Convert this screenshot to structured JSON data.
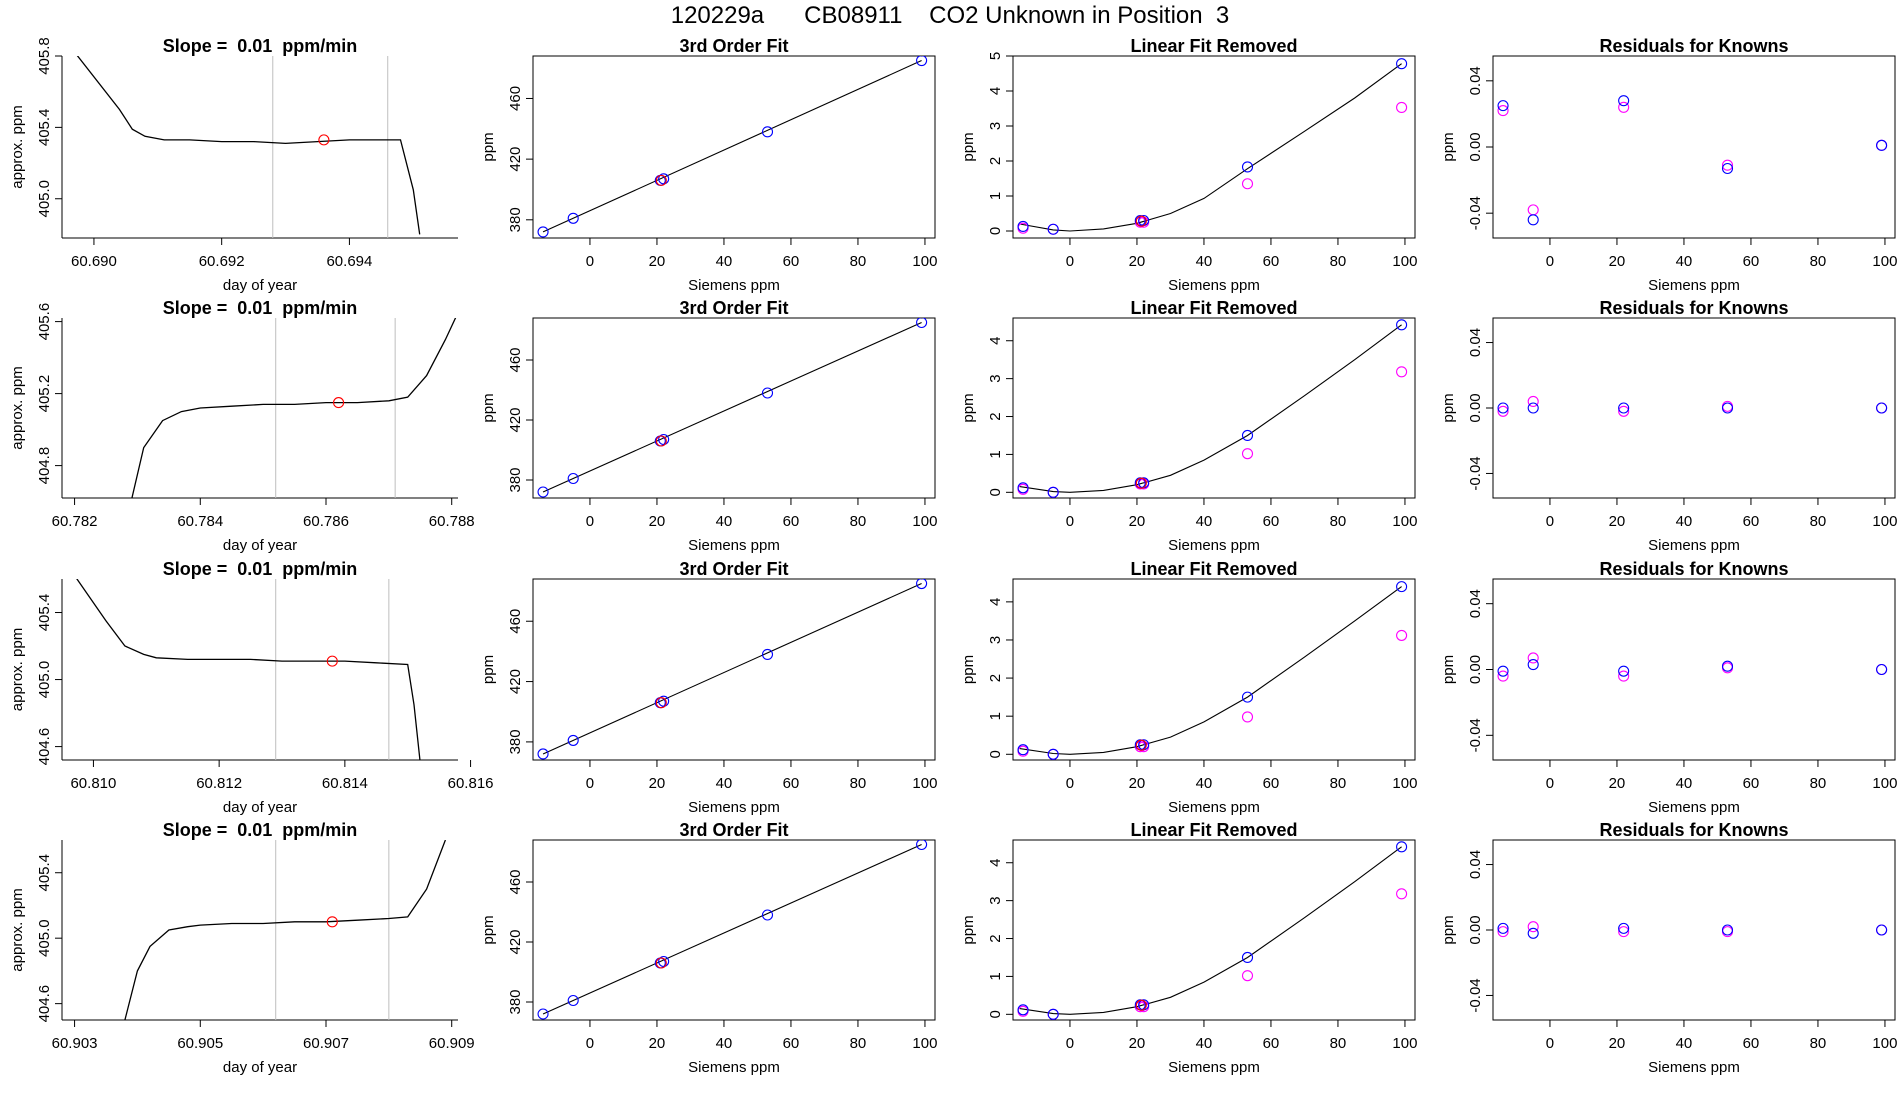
{
  "figure_title": "120229a      CB08911    CO2 Unknown in Position  3",
  "colors": {
    "line": "#000000",
    "known": "#0000ff",
    "fit_point": "#ff00ff",
    "unknown": "#ff0000",
    "guide": "#bebebe"
  },
  "chart_data": [
    {
      "type": "line",
      "panel": "time-series",
      "row": 1,
      "title": "Slope =  0.01  ppm/min",
      "xlabel": "day of year",
      "ylabel": "approx. ppm",
      "xlim": [
        60.6895,
        60.6957
      ],
      "ylim": [
        404.78,
        405.8
      ],
      "xticks": [
        "60.690",
        "60.692",
        "60.694"
      ],
      "yticks": [
        "405.0",
        "405.4",
        "405.8"
      ],
      "guides_x": [
        60.6928,
        60.6946
      ],
      "series": [
        {
          "x": [
            60.6897,
            60.6904,
            60.6906,
            60.6908,
            60.6911,
            60.6915,
            60.692,
            60.6925,
            60.693,
            60.6935,
            60.694,
            60.6944,
            60.6948,
            60.695,
            60.6951
          ],
          "y": [
            405.82,
            405.5,
            405.39,
            405.35,
            405.33,
            405.33,
            405.32,
            405.32,
            405.31,
            405.32,
            405.33,
            405.33,
            405.33,
            405.05,
            404.8
          ]
        }
      ],
      "unknown_point": {
        "x": 60.6936,
        "y": 405.33
      }
    },
    {
      "type": "scatter",
      "panel": "3rd-order-fit",
      "row": 1,
      "title": "3rd Order Fit",
      "xlabel": "Siemens ppm",
      "ylabel": "ppm",
      "xlim": [
        -17,
        103
      ],
      "ylim": [
        368,
        488
      ],
      "xticks": [
        "0",
        "20",
        "40",
        "60",
        "80",
        "100"
      ],
      "yticks": [
        "380",
        "420",
        "460"
      ],
      "knowns": {
        "x": [
          -14,
          -5,
          21,
          22,
          53,
          99
        ],
        "y": [
          372,
          381,
          406,
          407,
          438,
          485
        ]
      },
      "unknown_point": {
        "x": 21.3,
        "y": 406
      },
      "fit_line": {
        "x": [
          -14,
          99
        ],
        "y": [
          372,
          485
        ]
      }
    },
    {
      "type": "scatter",
      "panel": "linear-fit-removed",
      "row": 1,
      "title": "Linear Fit Removed",
      "xlabel": "Siemens ppm",
      "ylabel": "ppm",
      "xlim": [
        -17,
        103
      ],
      "ylim": [
        -0.2,
        5.0
      ],
      "xticks": [
        "0",
        "20",
        "40",
        "60",
        "80",
        "100"
      ],
      "yticks": [
        "0",
        "1",
        "2",
        "3",
        "4",
        "5"
      ],
      "knowns": {
        "x": [
          -14,
          -5,
          21,
          22,
          53,
          99
        ],
        "y": [
          0.13,
          0.05,
          0.3,
          0.3,
          1.83,
          4.78
        ]
      },
      "linear_points": {
        "x": [
          -14,
          -5,
          21,
          22,
          53,
          99
        ],
        "y": [
          0.08,
          0.05,
          0.25,
          0.25,
          1.35,
          3.53
        ]
      },
      "unknown_point": {
        "x": 21.3,
        "y": 0.28
      },
      "curve": {
        "x": [
          -15,
          -5,
          0,
          10,
          20,
          30,
          40,
          53,
          70,
          85,
          99
        ],
        "y": [
          0.2,
          0.03,
          0.0,
          0.06,
          0.22,
          0.5,
          0.93,
          1.78,
          2.85,
          3.8,
          4.78
        ]
      }
    },
    {
      "type": "scatter",
      "panel": "residuals",
      "row": 1,
      "title": "Residuals for Knowns",
      "xlabel": "Siemens ppm",
      "ylabel": "ppm",
      "xlim": [
        -17,
        103
      ],
      "ylim": [
        -0.055,
        0.055
      ],
      "xticks": [
        "0",
        "20",
        "40",
        "60",
        "80",
        "100"
      ],
      "yticks": [
        "-0.04",
        "0.00",
        "0.04"
      ],
      "knowns": {
        "x": [
          -14,
          -5,
          22,
          53,
          99
        ],
        "y": [
          0.025,
          -0.044,
          0.028,
          -0.013,
          0.001
        ]
      },
      "linear_points": {
        "x": [
          -14,
          -5,
          22,
          53,
          99
        ],
        "y": [
          0.022,
          -0.038,
          0.024,
          -0.011,
          0.001
        ]
      }
    },
    {
      "type": "line",
      "panel": "time-series",
      "row": 2,
      "title": "Slope =  0.01  ppm/min",
      "xlabel": "day of year",
      "ylabel": "approx. ppm",
      "xlim": [
        60.7818,
        60.7881
      ],
      "ylim": [
        404.62,
        405.62
      ],
      "xticks": [
        "60.782",
        "60.784",
        "60.786",
        "60.788"
      ],
      "yticks": [
        "404.8",
        "405.2",
        "405.6"
      ],
      "guides_x": [
        60.7852,
        60.7871
      ],
      "series": [
        {
          "x": [
            60.7829,
            60.7831,
            60.7834,
            60.7837,
            60.784,
            60.7845,
            60.785,
            60.7855,
            60.786,
            60.7865,
            60.787,
            60.7873,
            60.7876,
            60.7879,
            60.7881
          ],
          "y": [
            404.6,
            404.9,
            405.05,
            405.1,
            405.12,
            405.13,
            405.14,
            405.14,
            405.15,
            405.15,
            405.16,
            405.18,
            405.3,
            405.5,
            405.65
          ]
        }
      ],
      "unknown_point": {
        "x": 60.7862,
        "y": 405.15
      }
    },
    {
      "type": "scatter",
      "panel": "3rd-order-fit",
      "row": 2,
      "title": "3rd Order Fit",
      "xlabel": "Siemens ppm",
      "ylabel": "ppm",
      "xlim": [
        -17,
        103
      ],
      "ylim": [
        368,
        488
      ],
      "xticks": [
        "0",
        "20",
        "40",
        "60",
        "80",
        "100"
      ],
      "yticks": [
        "380",
        "420",
        "460"
      ],
      "knowns": {
        "x": [
          -14,
          -5,
          21,
          22,
          53,
          99
        ],
        "y": [
          372,
          381,
          406,
          407,
          438,
          485
        ]
      },
      "unknown_point": {
        "x": 21.3,
        "y": 406
      },
      "fit_line": {
        "x": [
          -14,
          99
        ],
        "y": [
          372,
          485
        ]
      }
    },
    {
      "type": "scatter",
      "panel": "linear-fit-removed",
      "row": 2,
      "title": "Linear Fit Removed",
      "xlabel": "Siemens ppm",
      "ylabel": "ppm",
      "xlim": [
        -17,
        103
      ],
      "ylim": [
        -0.15,
        4.6
      ],
      "xticks": [
        "0",
        "20",
        "40",
        "60",
        "80",
        "100"
      ],
      "yticks": [
        "0",
        "1",
        "2",
        "3",
        "4"
      ],
      "knowns": {
        "x": [
          -14,
          -5,
          21,
          22,
          53,
          99
        ],
        "y": [
          0.12,
          0.0,
          0.25,
          0.25,
          1.5,
          4.42
        ]
      },
      "linear_points": {
        "x": [
          -14,
          -5,
          21,
          22,
          53,
          99
        ],
        "y": [
          0.08,
          0.0,
          0.22,
          0.22,
          1.02,
          3.18
        ]
      },
      "unknown_point": {
        "x": 21.3,
        "y": 0.24
      },
      "curve": {
        "x": [
          -15,
          -5,
          0,
          10,
          20,
          30,
          40,
          53,
          70,
          85,
          99
        ],
        "y": [
          0.15,
          0.02,
          0.0,
          0.05,
          0.2,
          0.45,
          0.85,
          1.5,
          2.55,
          3.5,
          4.42
        ]
      }
    },
    {
      "type": "scatter",
      "panel": "residuals",
      "row": 2,
      "title": "Residuals for Knowns",
      "xlabel": "Siemens ppm",
      "ylabel": "ppm",
      "xlim": [
        -17,
        103
      ],
      "ylim": [
        -0.055,
        0.055
      ],
      "xticks": [
        "0",
        "20",
        "40",
        "60",
        "80",
        "100"
      ],
      "yticks": [
        "-0.04",
        "0.00",
        "0.04"
      ],
      "knowns": {
        "x": [
          -14,
          -5,
          22,
          53,
          99
        ],
        "y": [
          0.0,
          0.0,
          0.0,
          0.0,
          0.0
        ]
      },
      "linear_points": {
        "x": [
          -14,
          -5,
          22,
          53,
          99
        ],
        "y": [
          -0.002,
          0.004,
          -0.002,
          0.001,
          0.0
        ]
      }
    },
    {
      "type": "line",
      "panel": "time-series",
      "row": 3,
      "title": "Slope =  0.01  ppm/min",
      "xlabel": "day of year",
      "ylabel": "approx. ppm",
      "xlim": [
        60.8095,
        60.8158
      ],
      "ylim": [
        404.52,
        405.6
      ],
      "xticks": [
        "60.810",
        "60.812",
        "60.814",
        "60.816"
      ],
      "yticks": [
        "404.6",
        "405.0",
        "405.4"
      ],
      "guides_x": [
        60.8129,
        60.8147
      ],
      "series": [
        {
          "x": [
            60.8097,
            60.8102,
            60.8105,
            60.8108,
            60.811,
            60.8115,
            60.812,
            60.8125,
            60.813,
            60.8135,
            60.814,
            60.8145,
            60.815,
            60.8151,
            60.8152
          ],
          "y": [
            405.62,
            405.35,
            405.2,
            405.15,
            405.13,
            405.12,
            405.12,
            405.12,
            405.11,
            405.11,
            405.11,
            405.1,
            405.09,
            404.85,
            404.5
          ]
        }
      ],
      "unknown_point": {
        "x": 60.8138,
        "y": 405.11
      }
    },
    {
      "type": "scatter",
      "panel": "3rd-order-fit",
      "row": 3,
      "title": "3rd Order Fit",
      "xlabel": "Siemens ppm",
      "ylabel": "ppm",
      "xlim": [
        -17,
        103
      ],
      "ylim": [
        368,
        488
      ],
      "xticks": [
        "0",
        "20",
        "40",
        "60",
        "80",
        "100"
      ],
      "yticks": [
        "380",
        "420",
        "460"
      ],
      "knowns": {
        "x": [
          -14,
          -5,
          21,
          22,
          53,
          99
        ],
        "y": [
          372,
          381,
          406,
          407,
          438,
          485
        ]
      },
      "unknown_point": {
        "x": 21.3,
        "y": 406
      },
      "fit_line": {
        "x": [
          -14,
          99
        ],
        "y": [
          372,
          485
        ]
      }
    },
    {
      "type": "scatter",
      "panel": "linear-fit-removed",
      "row": 3,
      "title": "Linear Fit Removed",
      "xlabel": "Siemens ppm",
      "ylabel": "ppm",
      "xlim": [
        -17,
        103
      ],
      "ylim": [
        -0.15,
        4.6
      ],
      "xticks": [
        "0",
        "20",
        "40",
        "60",
        "80",
        "100"
      ],
      "yticks": [
        "0",
        "1",
        "2",
        "3",
        "4"
      ],
      "knowns": {
        "x": [
          -14,
          -5,
          21,
          22,
          53,
          99
        ],
        "y": [
          0.12,
          0.0,
          0.25,
          0.25,
          1.5,
          4.4
        ]
      },
      "linear_points": {
        "x": [
          -14,
          -5,
          21,
          22,
          53,
          99
        ],
        "y": [
          0.08,
          0.0,
          0.2,
          0.2,
          0.98,
          3.12
        ]
      },
      "unknown_point": {
        "x": 21.3,
        "y": 0.24
      },
      "curve": {
        "x": [
          -15,
          -5,
          0,
          10,
          20,
          30,
          40,
          53,
          70,
          85,
          99
        ],
        "y": [
          0.15,
          0.02,
          0.0,
          0.05,
          0.2,
          0.45,
          0.85,
          1.5,
          2.55,
          3.5,
          4.4
        ]
      }
    },
    {
      "type": "scatter",
      "panel": "residuals",
      "row": 3,
      "title": "Residuals for Knowns",
      "xlabel": "Siemens ppm",
      "ylabel": "ppm",
      "xlim": [
        -17,
        103
      ],
      "ylim": [
        -0.055,
        0.055
      ],
      "xticks": [
        "0",
        "20",
        "40",
        "60",
        "80",
        "100"
      ],
      "yticks": [
        "-0.04",
        "0.00",
        "0.04"
      ],
      "knowns": {
        "x": [
          -14,
          -5,
          22,
          53,
          99
        ],
        "y": [
          -0.001,
          0.003,
          -0.001,
          0.002,
          0.0
        ]
      },
      "linear_points": {
        "x": [
          -14,
          -5,
          22,
          53,
          99
        ],
        "y": [
          -0.004,
          0.007,
          -0.004,
          0.001,
          0.0
        ]
      }
    },
    {
      "type": "line",
      "panel": "time-series",
      "row": 4,
      "title": "Slope =  0.01  ppm/min",
      "xlabel": "day of year",
      "ylabel": "approx. ppm",
      "xlim": [
        60.9028,
        60.9091
      ],
      "ylim": [
        404.5,
        405.6
      ],
      "xticks": [
        "60.903",
        "60.905",
        "60.907",
        "60.909"
      ],
      "yticks": [
        "404.6",
        "405.0",
        "405.4"
      ],
      "guides_x": [
        60.9062,
        60.908
      ],
      "series": [
        {
          "x": [
            60.9038,
            60.904,
            60.9042,
            60.9045,
            60.9048,
            60.905,
            60.9055,
            60.906,
            60.9065,
            60.907,
            60.9075,
            60.908,
            60.9083,
            60.9086,
            60.9089
          ],
          "y": [
            404.5,
            404.8,
            404.95,
            405.05,
            405.07,
            405.08,
            405.09,
            405.09,
            405.1,
            405.1,
            405.11,
            405.12,
            405.13,
            405.3,
            405.6
          ]
        }
      ],
      "unknown_point": {
        "x": 60.9071,
        "y": 405.1
      }
    },
    {
      "type": "scatter",
      "panel": "3rd-order-fit",
      "row": 4,
      "title": "3rd Order Fit",
      "xlabel": "Siemens ppm",
      "ylabel": "ppm",
      "xlim": [
        -17,
        103
      ],
      "ylim": [
        368,
        488
      ],
      "xticks": [
        "0",
        "20",
        "40",
        "60",
        "80",
        "100"
      ],
      "yticks": [
        "380",
        "420",
        "460"
      ],
      "knowns": {
        "x": [
          -14,
          -5,
          21,
          22,
          53,
          99
        ],
        "y": [
          372,
          381,
          406,
          407,
          438,
          485
        ]
      },
      "unknown_point": {
        "x": 21.3,
        "y": 406
      },
      "fit_line": {
        "x": [
          -14,
          99
        ],
        "y": [
          372,
          485
        ]
      }
    },
    {
      "type": "scatter",
      "panel": "linear-fit-removed",
      "row": 4,
      "title": "Linear Fit Removed",
      "xlabel": "Siemens ppm",
      "ylabel": "ppm",
      "xlim": [
        -17,
        103
      ],
      "ylim": [
        -0.15,
        4.6
      ],
      "xticks": [
        "0",
        "20",
        "40",
        "60",
        "80",
        "100"
      ],
      "yticks": [
        "0",
        "1",
        "2",
        "3",
        "4"
      ],
      "knowns": {
        "x": [
          -14,
          -5,
          21,
          22,
          53,
          99
        ],
        "y": [
          0.12,
          0.0,
          0.25,
          0.25,
          1.5,
          4.42
        ]
      },
      "linear_points": {
        "x": [
          -14,
          -5,
          21,
          22,
          53,
          99
        ],
        "y": [
          0.08,
          0.0,
          0.2,
          0.2,
          1.02,
          3.18
        ]
      },
      "unknown_point": {
        "x": 21.3,
        "y": 0.24
      },
      "curve": {
        "x": [
          -15,
          -5,
          0,
          10,
          20,
          30,
          40,
          53,
          70,
          85,
          99
        ],
        "y": [
          0.15,
          0.02,
          0.0,
          0.05,
          0.2,
          0.45,
          0.85,
          1.5,
          2.55,
          3.5,
          4.42
        ]
      }
    },
    {
      "type": "scatter",
      "panel": "residuals",
      "row": 4,
      "title": "Residuals for Knowns",
      "xlabel": "Siemens ppm",
      "ylabel": "ppm",
      "xlim": [
        -17,
        103
      ],
      "ylim": [
        -0.055,
        0.055
      ],
      "xticks": [
        "0",
        "20",
        "40",
        "60",
        "80",
        "100"
      ],
      "yticks": [
        "-0.04",
        "0.00",
        "0.04"
      ],
      "knowns": {
        "x": [
          -14,
          -5,
          22,
          53,
          99
        ],
        "y": [
          0.001,
          -0.002,
          0.001,
          0.0,
          0.0
        ]
      },
      "linear_points": {
        "x": [
          -14,
          -5,
          22,
          53,
          99
        ],
        "y": [
          -0.001,
          0.002,
          -0.001,
          -0.001,
          0.0
        ]
      }
    }
  ]
}
